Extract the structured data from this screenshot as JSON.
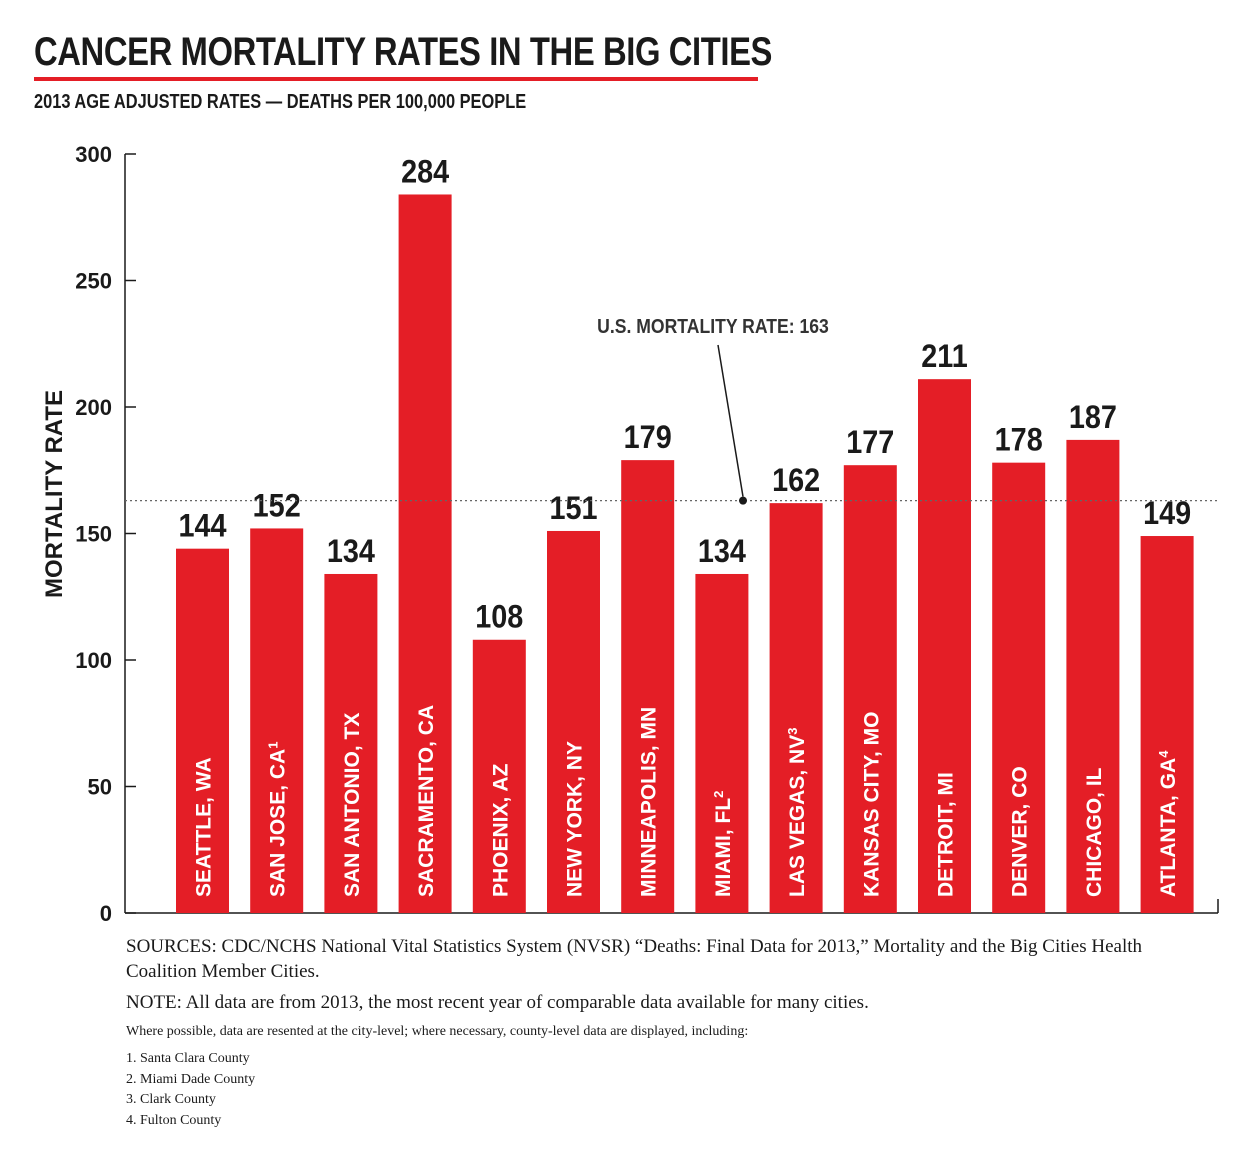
{
  "title": "CANCER MORTALITY RATES IN THE BIG CITIES",
  "subtitle": "2013 AGE ADJUSTED RATES — DEATHS PER 100,000 PEOPLE",
  "colors": {
    "bar": "#e41e26",
    "text": "#1a1a1a",
    "rule": "#e41e26"
  },
  "chart_data": {
    "type": "bar",
    "ylabel": "MORTALITY RATE",
    "ylim": [
      0,
      300
    ],
    "yticks": [
      "0",
      "50",
      "100",
      "150",
      "200",
      "250",
      "300"
    ],
    "categories": [
      {
        "label": "SEATTLE, WA",
        "sup": ""
      },
      {
        "label": "SAN JOSE, CA",
        "sup": "1"
      },
      {
        "label": "SAN ANTONIO, TX",
        "sup": ""
      },
      {
        "label": "SACRAMENTO, CA",
        "sup": ""
      },
      {
        "label": "PHOENIX, AZ",
        "sup": ""
      },
      {
        "label": "NEW YORK, NY",
        "sup": ""
      },
      {
        "label": "MINNEAPOLIS, MN",
        "sup": ""
      },
      {
        "label": "MIAMI, FL",
        "sup": "2"
      },
      {
        "label": "LAS VEGAS, NV",
        "sup": "3"
      },
      {
        "label": "KANSAS CITY, MO",
        "sup": ""
      },
      {
        "label": "DETROIT, MI",
        "sup": ""
      },
      {
        "label": "DENVER, CO",
        "sup": ""
      },
      {
        "label": "CHICAGO, IL",
        "sup": ""
      },
      {
        "label": "ATLANTA, GA",
        "sup": "4"
      }
    ],
    "values": [
      144,
      152,
      134,
      284,
      108,
      151,
      179,
      134,
      162,
      177,
      211,
      178,
      187,
      149
    ],
    "reference_line": {
      "value": 163,
      "label": "U.S. MORTALITY RATE: 163",
      "style": "dotted"
    },
    "grid": false,
    "legend": "none"
  },
  "footer": {
    "sources": "SOURCES: CDC/NCHS National Vital Statistics System (NVSR) “Deaths: Final Data for 2013,” Mortality and the Big Cities Health Coalition Member Cities.",
    "note": "NOTE: All data are from 2013, the most recent year of comparable data available for many  cities.",
    "where": "Where possible, data are resented at the city-level; where necessary, county-level data are displayed, including:",
    "footnotes": [
      "1. Santa Clara County",
      "2. Miami Dade County",
      "3. Clark County",
      "4. Fulton County"
    ]
  }
}
